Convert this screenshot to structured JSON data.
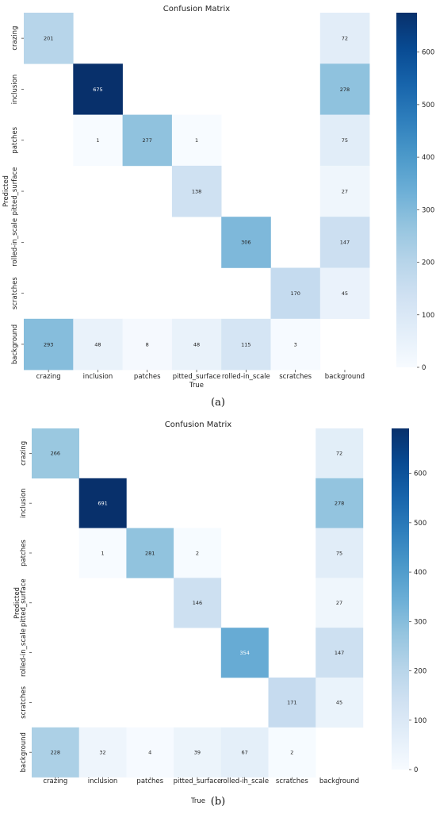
{
  "chart_data": [
    {
      "type": "heatmap",
      "title": "Confusion Matrix",
      "xlabel": "True",
      "ylabel": "Predicted",
      "x_categories": [
        "crazing",
        "inclusion",
        "patches",
        "pitted_surface",
        "rolled-in_scale",
        "scratches",
        "background"
      ],
      "y_categories": [
        "crazing",
        "inclusion",
        "patches",
        "pitted_surface",
        "rolled-in_scale",
        "scratches",
        "background"
      ],
      "matrix": [
        [
          201,
          null,
          null,
          null,
          null,
          null,
          72
        ],
        [
          null,
          675,
          null,
          null,
          null,
          null,
          278
        ],
        [
          null,
          1,
          277,
          1,
          null,
          null,
          75
        ],
        [
          null,
          null,
          null,
          138,
          null,
          null,
          27
        ],
        [
          null,
          null,
          null,
          null,
          306,
          null,
          147
        ],
        [
          null,
          null,
          null,
          null,
          null,
          170,
          45
        ],
        [
          293,
          48,
          8,
          48,
          115,
          3,
          null
        ]
      ],
      "colorbar": {
        "min": 0,
        "max": 675,
        "ticks": [
          0,
          100,
          200,
          300,
          400,
          500,
          600
        ],
        "colormap": "Blues"
      },
      "caption": "(a)"
    },
    {
      "type": "heatmap",
      "title": "Confusion Matrix",
      "xlabel": "True",
      "ylabel": "Predicted",
      "x_categories": [
        "crazing",
        "inclusion",
        "patches",
        "pitted_surface",
        "rolled-in_scale",
        "scratches",
        "background"
      ],
      "y_categories": [
        "crazing",
        "inclusion",
        "patches",
        "pitted_surface",
        "rolled-in_scale",
        "scratches",
        "background"
      ],
      "matrix": [
        [
          266,
          null,
          null,
          null,
          null,
          null,
          72
        ],
        [
          null,
          691,
          null,
          null,
          null,
          null,
          278
        ],
        [
          null,
          1,
          281,
          2,
          null,
          null,
          75
        ],
        [
          null,
          null,
          null,
          146,
          null,
          null,
          27
        ],
        [
          null,
          null,
          null,
          null,
          354,
          null,
          147
        ],
        [
          null,
          null,
          null,
          null,
          null,
          171,
          45
        ],
        [
          228,
          32,
          4,
          39,
          67,
          2,
          null
        ]
      ],
      "colorbar": {
        "min": 0,
        "max": 691,
        "ticks": [
          0,
          100,
          200,
          300,
          400,
          500,
          600
        ],
        "colormap": "Blues"
      },
      "caption": "(b)"
    }
  ]
}
